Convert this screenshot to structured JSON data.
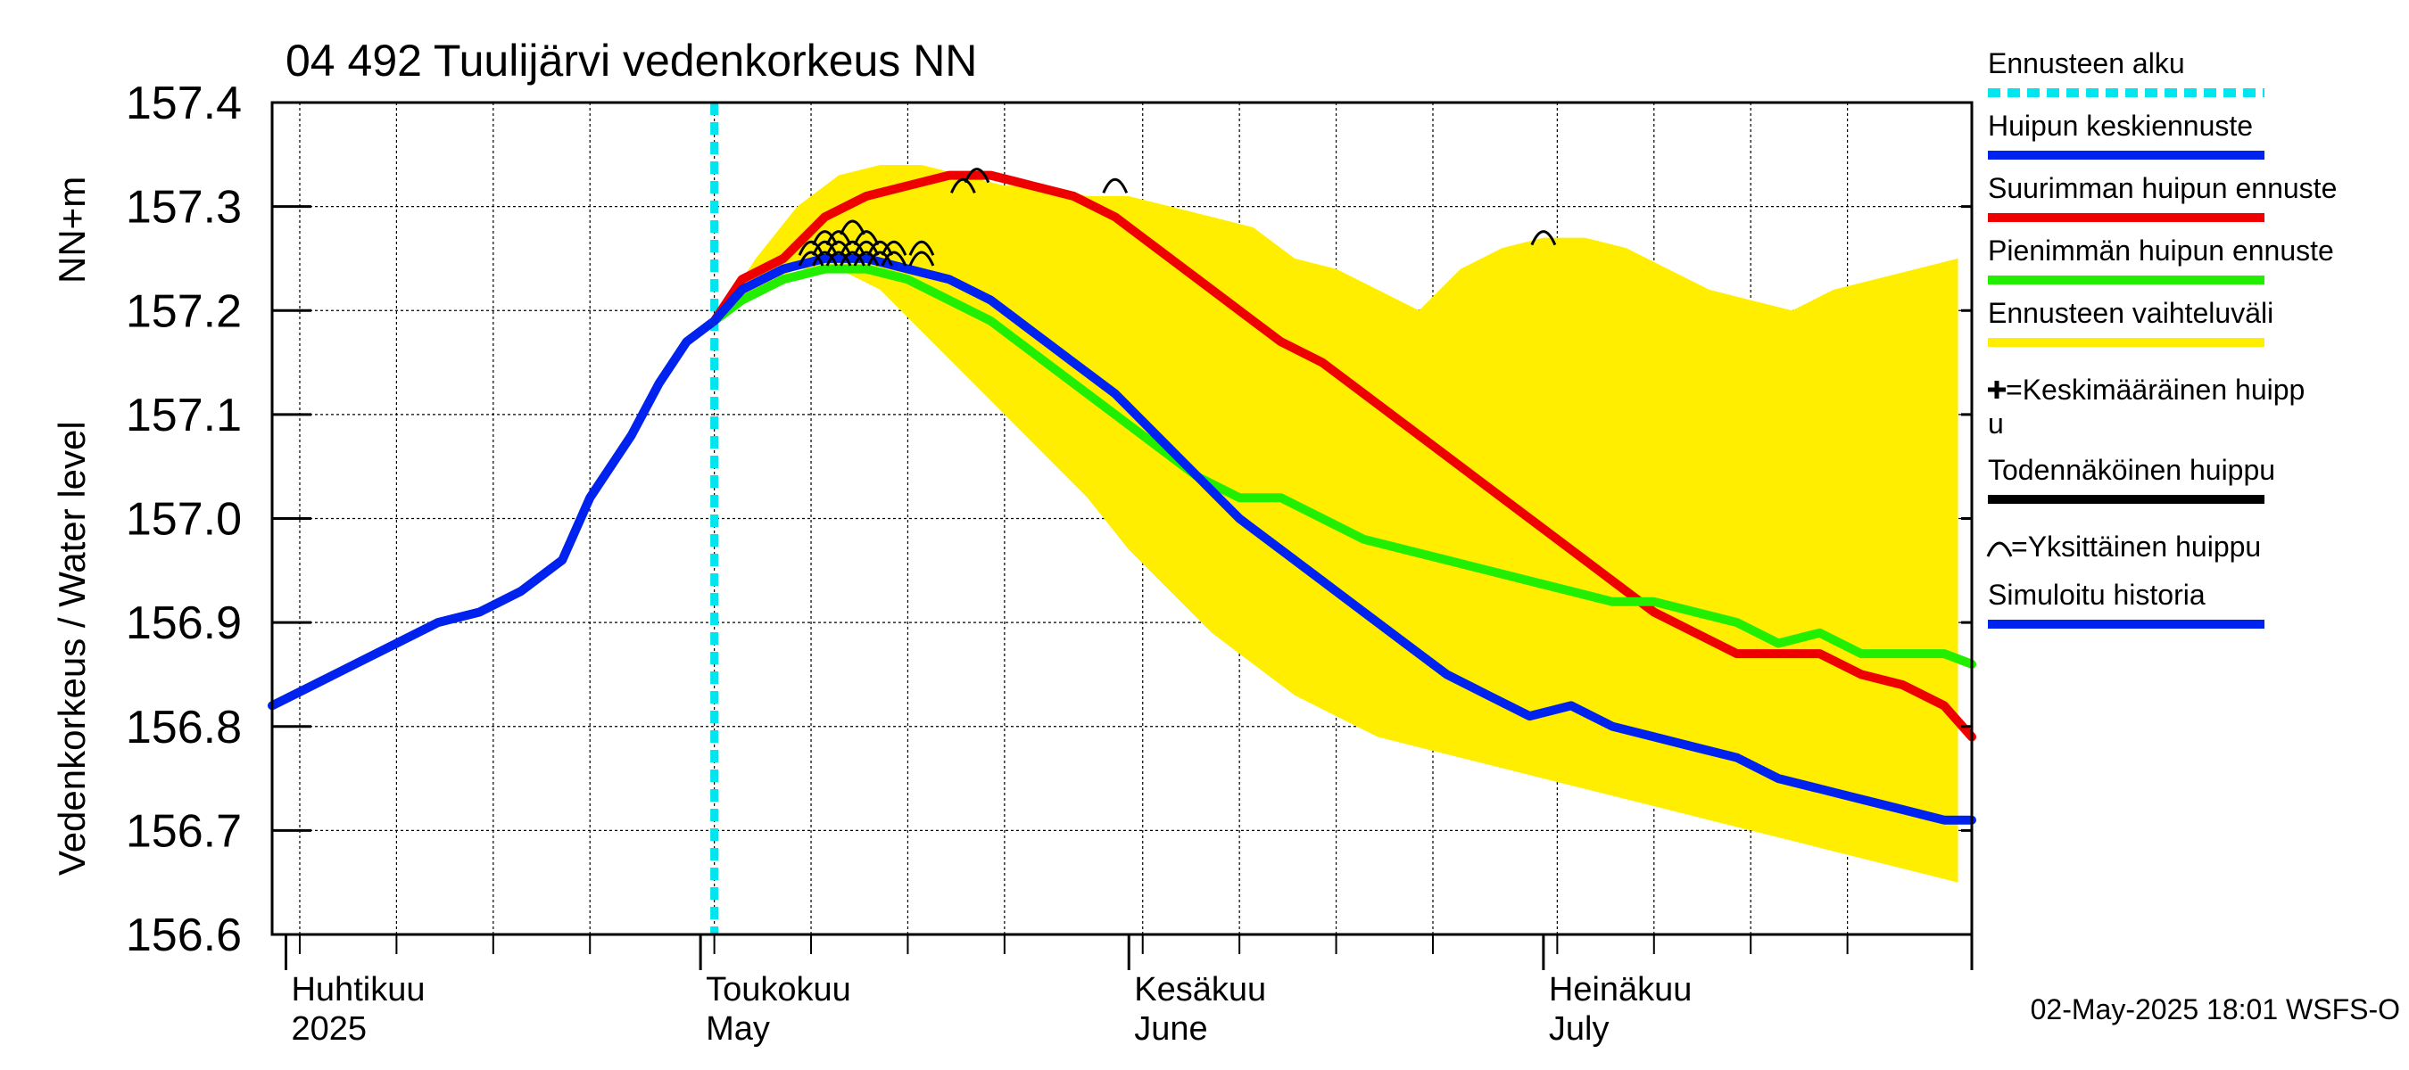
{
  "chart_data": {
    "type": "line",
    "title": "04 492 Tuulijärvi vedenkorkeus NN",
    "ylabel": "Vedenkorkeus / Water level",
    "yunit": "NN+m",
    "ylim": [
      156.6,
      157.4
    ],
    "yticks": [
      "156.6",
      "156.7",
      "156.8",
      "156.9",
      "157.0",
      "157.1",
      "157.2",
      "157.3",
      "157.4"
    ],
    "xlim": [
      "2025-03-31",
      "2025-08-01"
    ],
    "month_labels": [
      {
        "date": "2025-04-01",
        "fi": "Huhtikuu",
        "en": "2025"
      },
      {
        "date": "2025-05-01",
        "fi": "Toukokuu",
        "en": "May"
      },
      {
        "date": "2025-06-01",
        "fi": "Kesäkuu",
        "en": "June"
      },
      {
        "date": "2025-07-01",
        "fi": "Heinäkuu",
        "en": "July"
      }
    ],
    "grid": true,
    "forecast_start": "2025-05-02",
    "series": [
      {
        "name": "Ennusteen vaihteluväli",
        "type": "band",
        "color": "#ffee00",
        "x": [
          "2025-05-02",
          "2025-05-05",
          "2025-05-08",
          "2025-05-11",
          "2025-05-14",
          "2025-05-17",
          "2025-05-20",
          "2025-05-23",
          "2025-05-26",
          "2025-05-29",
          "2025-06-01",
          "2025-06-04",
          "2025-06-07",
          "2025-06-10",
          "2025-06-13",
          "2025-06-16",
          "2025-06-19",
          "2025-06-22",
          "2025-06-25",
          "2025-06-28",
          "2025-07-01",
          "2025-07-04",
          "2025-07-07",
          "2025-07-10",
          "2025-07-13",
          "2025-07-16",
          "2025-07-19",
          "2025-07-22",
          "2025-07-25",
          "2025-07-28",
          "2025-07-31"
        ],
        "upper": [
          157.19,
          157.25,
          157.3,
          157.33,
          157.34,
          157.34,
          157.33,
          157.32,
          157.32,
          157.31,
          157.31,
          157.3,
          157.29,
          157.28,
          157.25,
          157.24,
          157.22,
          157.2,
          157.24,
          157.26,
          157.27,
          157.27,
          157.26,
          157.24,
          157.22,
          157.21,
          157.2,
          157.22,
          157.23,
          157.24,
          157.25
        ],
        "lower": [
          157.19,
          157.22,
          157.24,
          157.24,
          157.22,
          157.18,
          157.14,
          157.1,
          157.06,
          157.02,
          156.97,
          156.93,
          156.89,
          156.86,
          156.83,
          156.81,
          156.79,
          156.78,
          156.77,
          156.76,
          156.75,
          156.74,
          156.73,
          156.72,
          156.71,
          156.7,
          156.69,
          156.68,
          156.67,
          156.66,
          156.65
        ]
      },
      {
        "name": "Simuloitu historia",
        "color": "#0022ee",
        "x": [
          "2025-03-31",
          "2025-04-03",
          "2025-04-06",
          "2025-04-09",
          "2025-04-12",
          "2025-04-15",
          "2025-04-18",
          "2025-04-21",
          "2025-04-23",
          "2025-04-26",
          "2025-04-28",
          "2025-04-30",
          "2025-05-02"
        ],
        "values": [
          156.82,
          156.84,
          156.86,
          156.88,
          156.9,
          156.91,
          156.93,
          156.96,
          157.02,
          157.08,
          157.13,
          157.17,
          157.19
        ]
      },
      {
        "name": "Suurimman huipun ennuste",
        "color": "#ee0000",
        "x": [
          "2025-05-02",
          "2025-05-04",
          "2025-05-07",
          "2025-05-10",
          "2025-05-13",
          "2025-05-16",
          "2025-05-19",
          "2025-05-22",
          "2025-05-25",
          "2025-05-28",
          "2025-05-31",
          "2025-06-03",
          "2025-06-06",
          "2025-06-09",
          "2025-06-12",
          "2025-06-15",
          "2025-06-18",
          "2025-06-21",
          "2025-06-24",
          "2025-06-27",
          "2025-06-30",
          "2025-07-03",
          "2025-07-06",
          "2025-07-09",
          "2025-07-12",
          "2025-07-15",
          "2025-07-18",
          "2025-07-21",
          "2025-07-24",
          "2025-07-27",
          "2025-07-30",
          "2025-08-01"
        ],
        "values": [
          157.19,
          157.23,
          157.25,
          157.29,
          157.31,
          157.32,
          157.33,
          157.33,
          157.32,
          157.31,
          157.29,
          157.26,
          157.23,
          157.2,
          157.17,
          157.15,
          157.12,
          157.09,
          157.06,
          157.03,
          157.0,
          156.97,
          156.94,
          156.91,
          156.89,
          156.87,
          156.87,
          156.87,
          156.85,
          156.84,
          156.82,
          156.79
        ]
      },
      {
        "name": "Pienimmän huipun ennuste",
        "color": "#22ee00",
        "x": [
          "2025-05-02",
          "2025-05-04",
          "2025-05-07",
          "2025-05-10",
          "2025-05-13",
          "2025-05-16",
          "2025-05-19",
          "2025-05-22",
          "2025-05-25",
          "2025-05-28",
          "2025-05-31",
          "2025-06-03",
          "2025-06-06",
          "2025-06-09",
          "2025-06-12",
          "2025-06-15",
          "2025-06-18",
          "2025-06-21",
          "2025-06-24",
          "2025-06-27",
          "2025-06-30",
          "2025-07-03",
          "2025-07-06",
          "2025-07-09",
          "2025-07-12",
          "2025-07-15",
          "2025-07-18",
          "2025-07-21",
          "2025-07-24",
          "2025-07-27",
          "2025-07-30",
          "2025-08-01"
        ],
        "values": [
          157.19,
          157.21,
          157.23,
          157.24,
          157.24,
          157.23,
          157.21,
          157.19,
          157.16,
          157.13,
          157.1,
          157.07,
          157.04,
          157.02,
          157.02,
          157.0,
          156.98,
          156.97,
          156.96,
          156.95,
          156.94,
          156.93,
          156.92,
          156.92,
          156.91,
          156.9,
          156.88,
          156.89,
          156.87,
          156.87,
          156.87,
          156.86
        ]
      },
      {
        "name": "Huipun keskiennuste",
        "color": "#0022ee",
        "x": [
          "2025-05-02",
          "2025-05-04",
          "2025-05-07",
          "2025-05-10",
          "2025-05-13",
          "2025-05-16",
          "2025-05-19",
          "2025-05-22",
          "2025-05-25",
          "2025-05-28",
          "2025-05-31",
          "2025-06-03",
          "2025-06-06",
          "2025-06-09",
          "2025-06-12",
          "2025-06-15",
          "2025-06-18",
          "2025-06-21",
          "2025-06-24",
          "2025-06-27",
          "2025-06-30",
          "2025-07-03",
          "2025-07-06",
          "2025-07-09",
          "2025-07-12",
          "2025-07-15",
          "2025-07-18",
          "2025-07-21",
          "2025-07-24",
          "2025-07-27",
          "2025-07-30",
          "2025-08-01"
        ],
        "values": [
          157.19,
          157.22,
          157.24,
          157.25,
          157.25,
          157.24,
          157.23,
          157.21,
          157.18,
          157.15,
          157.12,
          157.08,
          157.04,
          157.0,
          156.97,
          156.94,
          156.91,
          156.88,
          156.85,
          156.83,
          156.81,
          156.82,
          156.8,
          156.79,
          156.78,
          156.77,
          156.75,
          156.74,
          156.73,
          156.72,
          156.71,
          156.71
        ]
      }
    ],
    "peaks": {
      "name": "Yksittäinen huippu",
      "x": [
        "2025-05-09",
        "2025-05-09",
        "2025-05-10",
        "2025-05-10",
        "2025-05-10",
        "2025-05-11",
        "2025-05-11",
        "2025-05-11",
        "2025-05-12",
        "2025-05-12",
        "2025-05-12",
        "2025-05-13",
        "2025-05-13",
        "2025-05-13",
        "2025-05-14",
        "2025-05-14",
        "2025-05-15",
        "2025-05-15",
        "2025-05-17",
        "2025-05-17",
        "2025-05-20",
        "2025-05-21",
        "2025-05-31",
        "2025-07-01"
      ],
      "values": [
        157.25,
        157.26,
        157.26,
        157.25,
        157.27,
        157.26,
        157.25,
        157.27,
        157.26,
        157.28,
        157.25,
        157.27,
        157.26,
        157.25,
        157.26,
        157.25,
        157.26,
        157.25,
        157.26,
        157.25,
        157.32,
        157.33,
        157.32,
        157.27
      ]
    },
    "legend": [
      {
        "label": "Ennusteen alku",
        "style": "dashed",
        "color": "#00e5ee"
      },
      {
        "label": "Huipun keskiennuste",
        "style": "line",
        "color": "#0022ee"
      },
      {
        "label": "Suurimman huipun ennuste",
        "style": "line",
        "color": "#ee0000"
      },
      {
        "label": "Pienimmän huipun ennuste",
        "style": "line",
        "color": "#22ee00"
      },
      {
        "label": "Ennusteen vaihteluväli",
        "style": "line",
        "color": "#ffee00"
      },
      {
        "label": "=Keskimääräinen huipp",
        "label2": "u",
        "style": "plus",
        "color": "#000000"
      },
      {
        "label": "Todennäköinen huippu",
        "style": "line",
        "color": "#000000"
      },
      {
        "label": "=Yksittäinen huippu",
        "style": "arc",
        "color": "#000000"
      },
      {
        "label": "Simuloitu historia",
        "style": "line",
        "color": "#0022ee"
      }
    ],
    "legend_placement": "right",
    "footer": "02-May-2025 18:01 WSFS-O"
  }
}
